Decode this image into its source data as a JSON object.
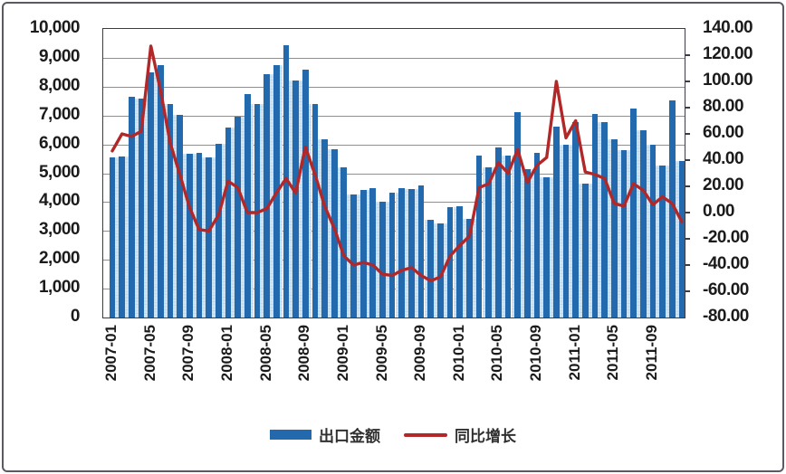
{
  "figure": {
    "background": "#ffffff",
    "frame_color": "#5a5a64"
  },
  "colors": {
    "bar_dark": "#2269ae",
    "bar_light": "#cfe3f3",
    "line_red": "#b22727",
    "gridline": "#8f8f8f",
    "axis_text": "#1b1b1b"
  },
  "legend": {
    "items": [
      {
        "label": "出口金额",
        "swatch": "bar-swatch"
      },
      {
        "label": "同比增长",
        "swatch": "line-swatch"
      }
    ]
  },
  "chart_data": {
    "type": "bar",
    "subtype": "bar+line dual axis",
    "grid": true,
    "legend_position": "bottom",
    "x": [
      "2007-01",
      "2007-02",
      "2007-03",
      "2007-04",
      "2007-05",
      "2007-06",
      "2007-07",
      "2007-08",
      "2007-09",
      "2007-10",
      "2007-11",
      "2007-12",
      "2008-01",
      "2008-02",
      "2008-03",
      "2008-04",
      "2008-05",
      "2008-06",
      "2008-07",
      "2008-08",
      "2008-09",
      "2008-10",
      "2008-11",
      "2008-12",
      "2009-01",
      "2009-02",
      "2009-03",
      "2009-04",
      "2009-05",
      "2009-06",
      "2009-07",
      "2009-08",
      "2009-09",
      "2009-10",
      "2009-11",
      "2009-12",
      "2010-01",
      "2010-02",
      "2010-03",
      "2010-04",
      "2010-05",
      "2010-06",
      "2010-07",
      "2010-08",
      "2010-09",
      "2010-10",
      "2010-11",
      "2010-12",
      "2011-01",
      "2011-02",
      "2011-03",
      "2011-04",
      "2011-05",
      "2011-06",
      "2011-07",
      "2011-08",
      "2011-09",
      "2011-10",
      "2011-11",
      "2011-12"
    ],
    "x_tick_labels": [
      "2007-01",
      "2007-05",
      "2007-09",
      "2008-01",
      "2008-05",
      "2008-09",
      "2009-01",
      "2009-05",
      "2009-09",
      "2010-01",
      "2010-05",
      "2010-09",
      "2011-01",
      "2011-05",
      "2011-09"
    ],
    "series": [
      {
        "name": "出口金额",
        "type": "bar",
        "axis": "left",
        "color": "#2269ae",
        "values": [
          5540,
          5580,
          7650,
          7600,
          8490,
          8750,
          7390,
          7020,
          5670,
          5700,
          5560,
          6030,
          6590,
          6970,
          7730,
          7410,
          8430,
          8750,
          9430,
          8220,
          8590,
          7390,
          6190,
          5820,
          5220,
          4280,
          4410,
          4470,
          4000,
          4330,
          4490,
          4440,
          4590,
          3390,
          3270,
          3840,
          3870,
          3420,
          5620,
          5200,
          5910,
          5620,
          7130,
          5150,
          5720,
          4870,
          6610,
          5980,
          6770,
          4630,
          7060,
          6770,
          6190,
          5790,
          7230,
          6500,
          6000,
          5260,
          7520,
          5420
        ]
      },
      {
        "name": "同比增长",
        "type": "line",
        "axis": "right",
        "color": "#b22727",
        "values": [
          47,
          60,
          58,
          62,
          127,
          93,
          53,
          29,
          4,
          -13,
          -14,
          -2,
          24,
          19,
          0,
          0,
          3,
          15,
          26,
          15,
          50,
          29,
          5,
          -12,
          -33,
          -40,
          -38,
          -40,
          -47,
          -48,
          -44,
          -42,
          -48,
          -52,
          -49,
          -33,
          -25,
          -18,
          19,
          22,
          38,
          30,
          48,
          23,
          36,
          42,
          100,
          57,
          70,
          31,
          29,
          26,
          7,
          5,
          22,
          17,
          6,
          12,
          7,
          -7
        ]
      }
    ],
    "left_axis": {
      "min": 0,
      "max": 10000,
      "step": 1000,
      "tick_labels": [
        "10,000",
        "9,000",
        "8,000",
        "7,000",
        "6,000",
        "5,000",
        "4,000",
        "3,000",
        "2,000",
        "1,000",
        "0"
      ]
    },
    "right_axis": {
      "min": -80,
      "max": 140,
      "step": 20,
      "tick_labels": [
        "140.00",
        "120.00",
        "100.00",
        "80.00",
        "60.00",
        "40.00",
        "20.00",
        "0.00",
        "-20.00",
        "-40.00",
        "-60.00",
        "-80.00"
      ]
    }
  }
}
